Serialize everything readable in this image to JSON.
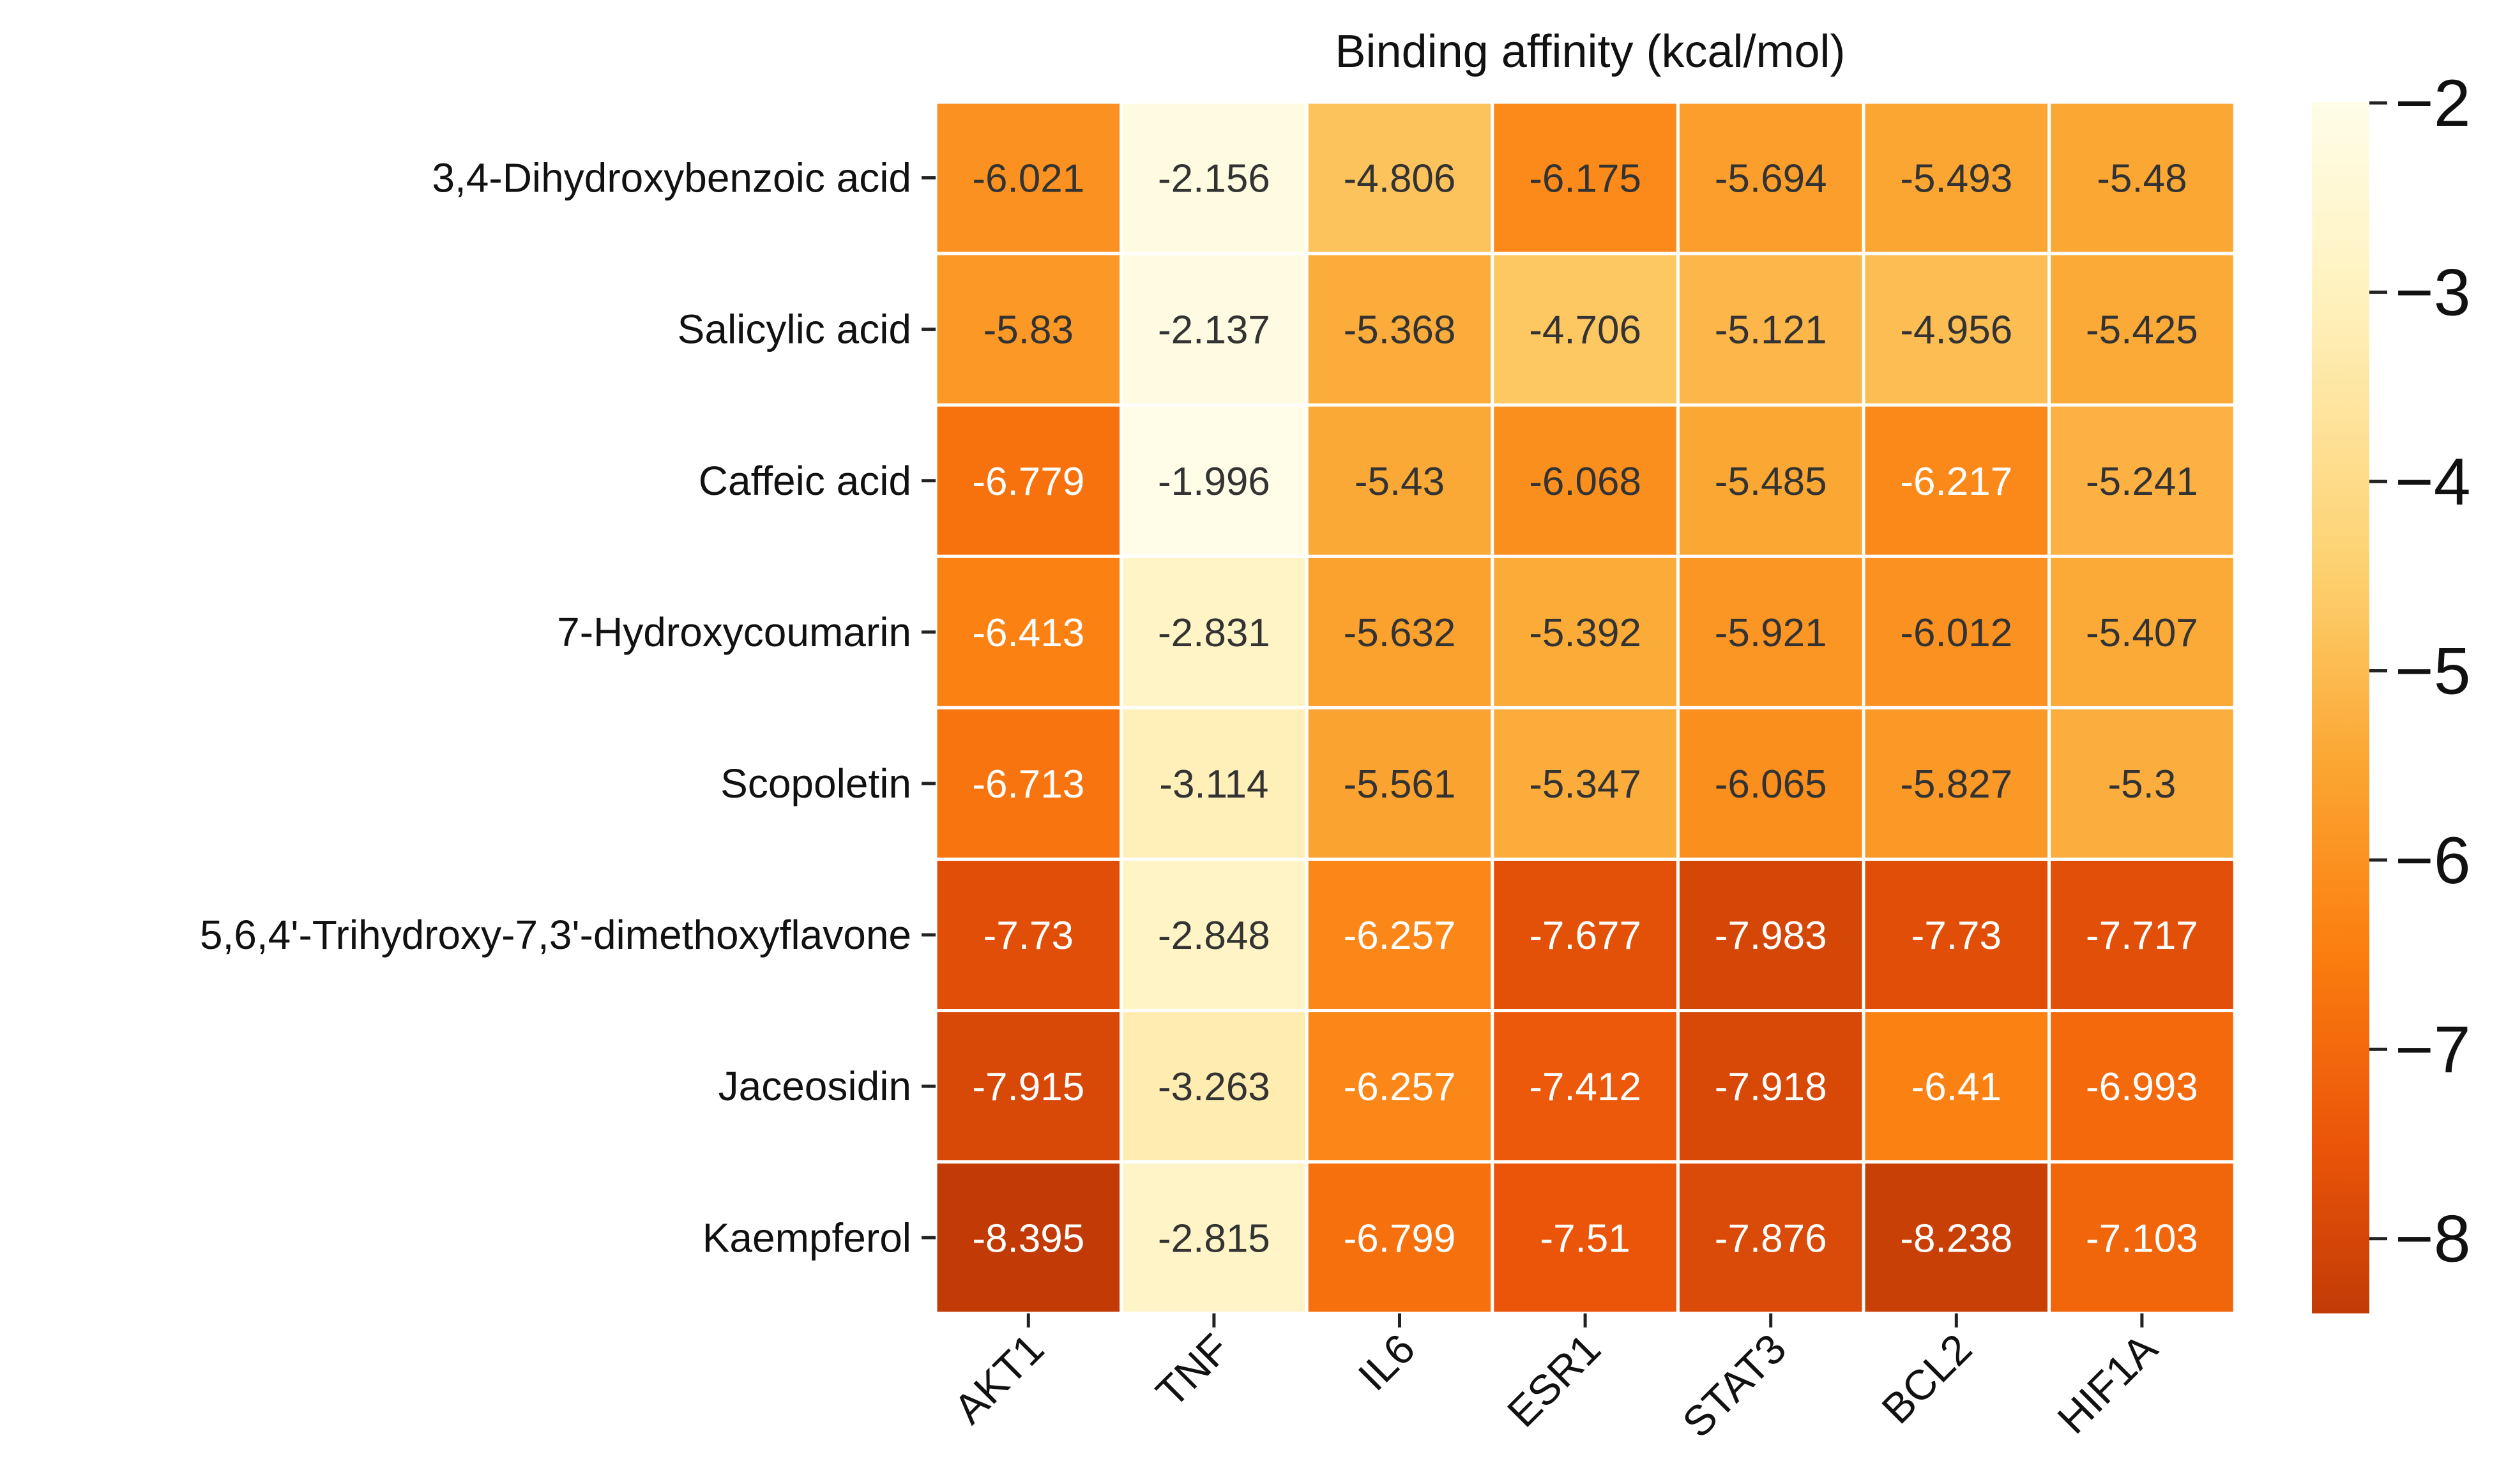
{
  "chart_data": {
    "type": "heatmap",
    "title": "",
    "colorbar_label": "Binding affinity (kcal/mol)",
    "xlabel": "",
    "ylabel": "",
    "columns": [
      "AKT1",
      "TNF",
      "IL6",
      "ESR1",
      "STAT3",
      "BCL2",
      "HIF1A"
    ],
    "rows": [
      "3,4-Dihydroxybenzoic acid",
      "Salicylic acid",
      "Caffeic acid",
      "7-Hydroxycoumarin",
      "Scopoletin",
      "5,6,4'-Trihydroxy-7,3'-dimethoxyflavone",
      "Jaceosidin",
      "Kaempferol"
    ],
    "values": [
      [
        -6.021,
        -2.156,
        -4.806,
        -6.175,
        -5.694,
        -5.493,
        -5.48
      ],
      [
        -5.83,
        -2.137,
        -5.368,
        -4.706,
        -5.121,
        -4.956,
        -5.425
      ],
      [
        -6.779,
        -1.996,
        -5.43,
        -6.068,
        -5.485,
        -6.217,
        -5.241
      ],
      [
        -6.413,
        -2.831,
        -5.632,
        -5.392,
        -5.921,
        -6.012,
        -5.407
      ],
      [
        -6.713,
        -3.114,
        -5.561,
        -5.347,
        -6.065,
        -5.827,
        -5.3
      ],
      [
        -7.73,
        -2.848,
        -6.257,
        -7.677,
        -7.983,
        -7.73,
        -7.717
      ],
      [
        -7.915,
        -3.263,
        -6.257,
        -7.412,
        -7.918,
        -6.41,
        -6.993
      ],
      [
        -8.395,
        -2.815,
        -6.799,
        -7.51,
        -7.876,
        -8.238,
        -7.103
      ]
    ],
    "value_labels": [
      [
        "-6.021",
        "-2.156",
        "-4.806",
        "-6.175",
        "-5.694",
        "-5.493",
        "-5.48"
      ],
      [
        "-5.83",
        "-2.137",
        "-5.368",
        "-4.706",
        "-5.121",
        "-4.956",
        "-5.425"
      ],
      [
        "-6.779",
        "-1.996",
        "-5.43",
        "-6.068",
        "-5.485",
        "-6.217",
        "-5.241"
      ],
      [
        "-6.413",
        "-2.831",
        "-5.632",
        "-5.392",
        "-5.921",
        "-6.012",
        "-5.407"
      ],
      [
        "-6.713",
        "-3.114",
        "-5.561",
        "-5.347",
        "-6.065",
        "-5.827",
        "-5.3"
      ],
      [
        "-7.73",
        "-2.848",
        "-6.257",
        "-7.677",
        "-7.983",
        "-7.73",
        "-7.717"
      ],
      [
        "-7.915",
        "-3.263",
        "-6.257",
        "-7.412",
        "-7.918",
        "-6.41",
        "-6.993"
      ],
      [
        "-8.395",
        "-2.815",
        "-6.799",
        "-7.51",
        "-7.876",
        "-8.238",
        "-7.103"
      ]
    ],
    "color_range": [
      -8.395,
      -1.996
    ],
    "colormap_stops": [
      {
        "value": -8.395,
        "color": "#c23b06"
      },
      {
        "value": -7.5,
        "color": "#eb5509"
      },
      {
        "value": -6.5,
        "color": "#fb7d0f"
      },
      {
        "value": -5.5,
        "color": "#fba632"
      },
      {
        "value": -4.5,
        "color": "#fdd06e"
      },
      {
        "value": -3.0,
        "color": "#fff2bf"
      },
      {
        "value": -1.996,
        "color": "#fffde8"
      }
    ],
    "colorbar_ticks": [
      -2,
      -3,
      -4,
      -5,
      -6,
      -7,
      -8
    ],
    "colorbar_tick_labels": [
      "−2",
      "−3",
      "−4",
      "−5",
      "−6",
      "−7",
      "−8"
    ],
    "cell_text_color_dark": "#333333",
    "cell_text_color_light": "#ffffff",
    "light_text_threshold": -6.2,
    "grid_line_color": "#ffffff",
    "colorbar_position": "right"
  }
}
